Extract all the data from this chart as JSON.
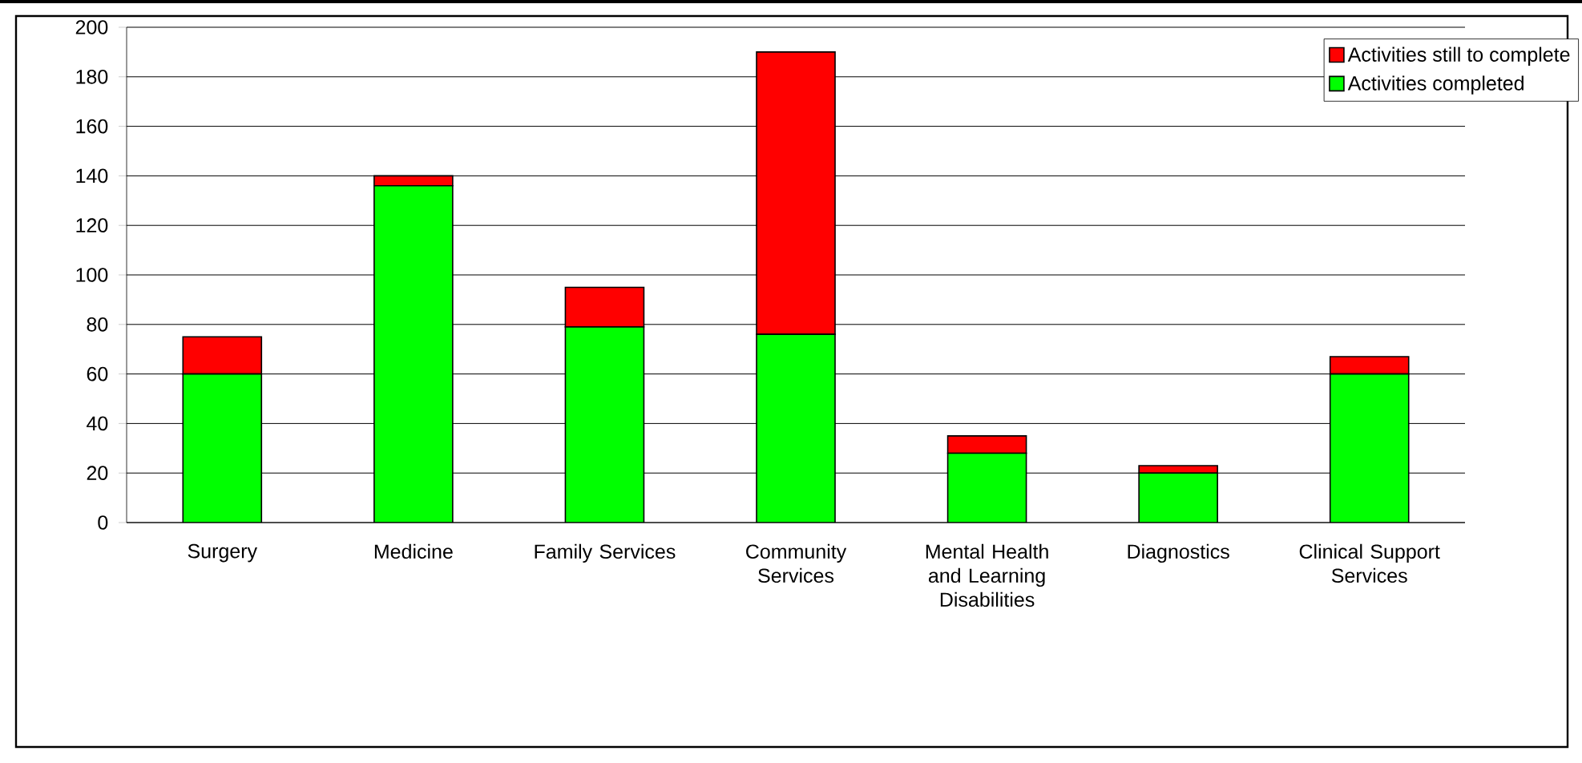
{
  "chart_data": {
    "type": "bar",
    "stacked": true,
    "categories": [
      "Surgery",
      "Medicine",
      "Family Services",
      "Community Services",
      "Mental Health and Learning Disabilities",
      "Diagnostics",
      "Clinical Support Services"
    ],
    "series": [
      {
        "name": "Activities completed",
        "color": "#00ff00",
        "values": [
          60,
          136,
          79,
          76,
          28,
          20,
          60
        ]
      },
      {
        "name": "Activities still to complete",
        "color": "#ff0000",
        "values": [
          15,
          4,
          16,
          114,
          7,
          3,
          7
        ]
      }
    ],
    "ylim": [
      0,
      200
    ],
    "yticks": [
      0,
      20,
      40,
      60,
      80,
      100,
      120,
      140,
      160,
      180,
      200
    ],
    "grid": "y",
    "legend": "top right"
  }
}
